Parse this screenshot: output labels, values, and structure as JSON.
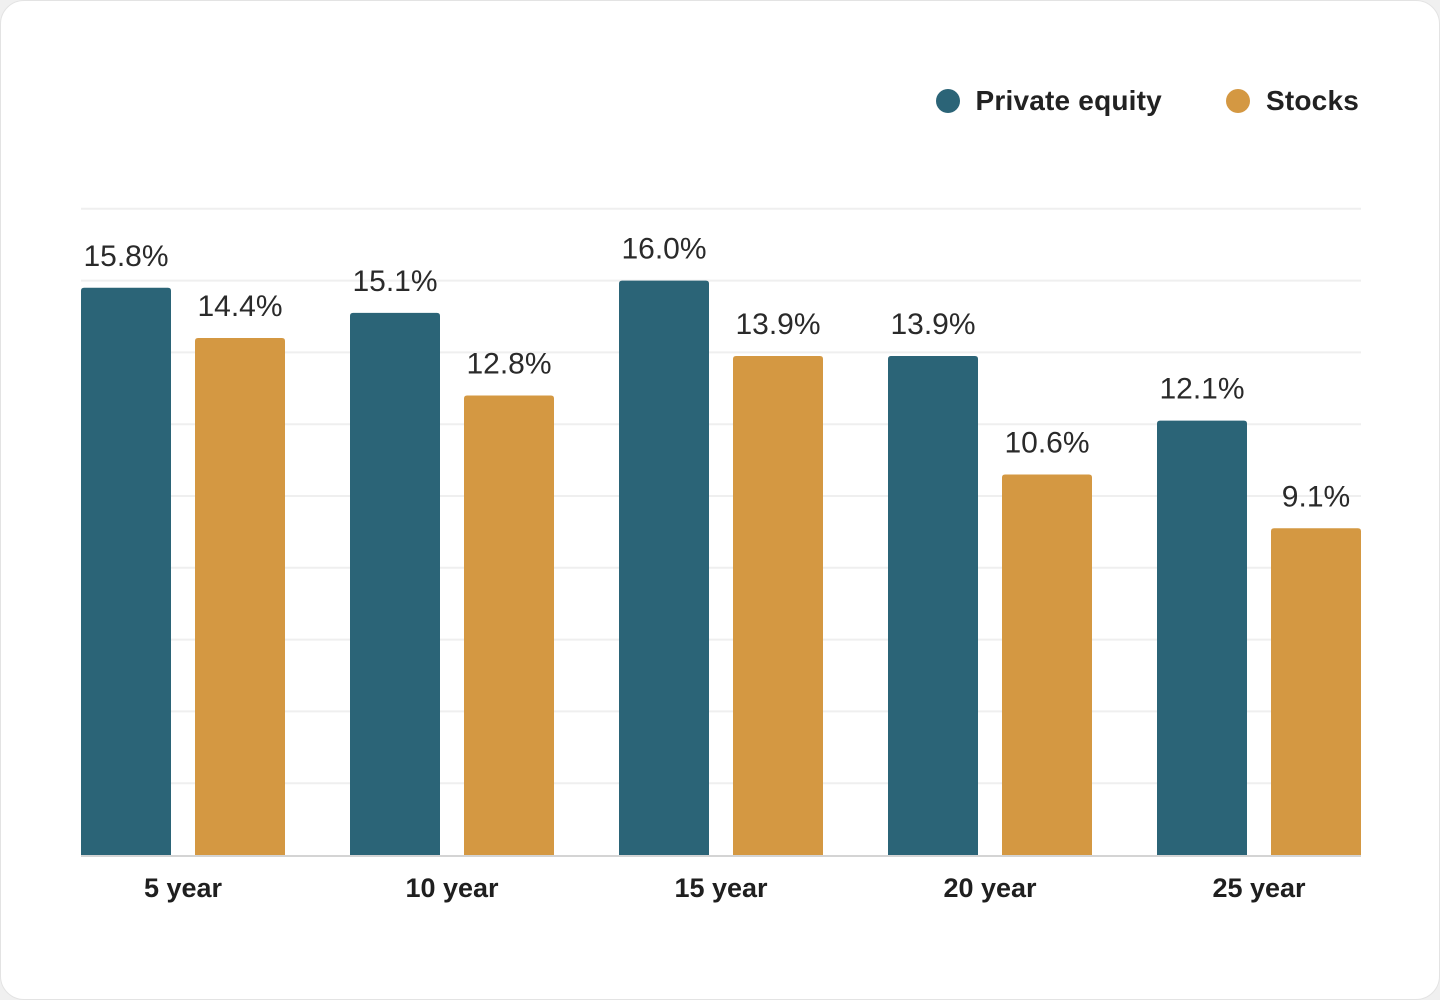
{
  "chart_data": {
    "type": "bar",
    "categories": [
      "5 year",
      "10 year",
      "15 year",
      "20 year",
      "25 year"
    ],
    "series": [
      {
        "name": "Private equity",
        "color": "#2b6477",
        "values": [
          15.8,
          15.1,
          16.0,
          13.9,
          12.1
        ],
        "labels": [
          "15.8%",
          "15.1%",
          "16.0%",
          "13.9%",
          "12.1%"
        ]
      },
      {
        "name": "Stocks",
        "color": "#d49842",
        "values": [
          14.4,
          12.8,
          13.9,
          10.6,
          9.1
        ],
        "labels": [
          "14.4%",
          "12.8%",
          "13.9%",
          "10.6%",
          "9.1%"
        ]
      }
    ],
    "title": "",
    "xlabel": "",
    "ylabel": "",
    "ylim": [
      0,
      18
    ],
    "grid": true,
    "legend_position": "top-right"
  }
}
